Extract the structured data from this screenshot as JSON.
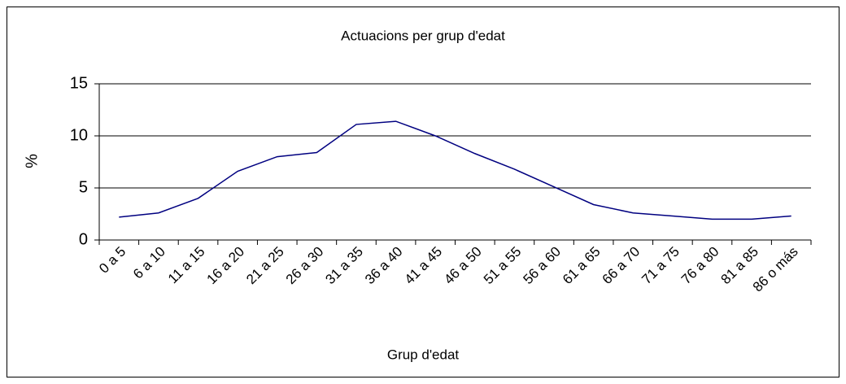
{
  "chart_data": {
    "type": "line",
    "title": "Actuacions per grup d'edat",
    "xlabel": "Grup d'edat",
    "ylabel": "%",
    "categories": [
      "0 a 5",
      "6 a 10",
      "11 a 15",
      "16 a 20",
      "21 a 25",
      "26 a 30",
      "31 a 35",
      "36 a 40",
      "41 a 45",
      "46 a 50",
      "51 a 55",
      "56 a 60",
      "61 a 65",
      "66 a 70",
      "71 a 75",
      "76 a 80",
      "81 a 85",
      "86 o más"
    ],
    "values": [
      2.2,
      2.6,
      4.0,
      6.6,
      8.0,
      8.4,
      11.1,
      11.4,
      10.0,
      8.3,
      6.8,
      5.1,
      3.4,
      2.6,
      2.3,
      2.0,
      2.0,
      2.3
    ],
    "color": "#000080",
    "ylim": [
      0,
      15
    ],
    "yticks": [
      0,
      5,
      10,
      15
    ],
    "grid": true
  }
}
